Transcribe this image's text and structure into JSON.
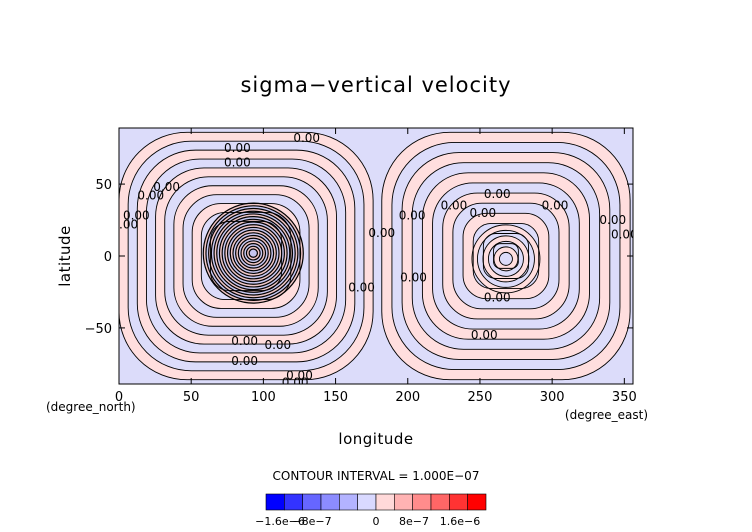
{
  "chart_data": {
    "type": "contour",
    "title": "sigma−vertical velocity",
    "xlabel": "longitude",
    "ylabel": "latitude",
    "x_unit": "(degree_east)",
    "y_unit": "(degree_north)",
    "xlim": [
      0,
      356
    ],
    "ylim": [
      -89,
      89
    ],
    "x_ticks": [
      0,
      50,
      100,
      150,
      200,
      250,
      300,
      350
    ],
    "y_ticks": [
      -50,
      0,
      50
    ],
    "x_tick_labels": [
      "0",
      "50",
      "100",
      "150",
      "200",
      "250",
      "300",
      "350"
    ],
    "y_tick_labels": [
      "−50",
      "0",
      "50"
    ],
    "contour_interval_text": "CONTOUR INTERVAL = 1.000E−07",
    "contour_interval": 1e-07,
    "contour_labels": [
      {
        "text": "0.00",
        "x": 130,
        "y": 82
      },
      {
        "text": "0.00",
        "x": 82,
        "y": 75
      },
      {
        "text": "0.00",
        "x": 82,
        "y": 65
      },
      {
        "text": "0.00",
        "x": 4,
        "y": 22
      },
      {
        "text": "0.00",
        "x": 12,
        "y": 28
      },
      {
        "text": "0.00",
        "x": 22,
        "y": 42
      },
      {
        "text": "0.00",
        "x": 33,
        "y": 48
      },
      {
        "text": "0.00",
        "x": 168,
        "y": -22
      },
      {
        "text": "0.00",
        "x": 87,
        "y": -59
      },
      {
        "text": "0.00",
        "x": 110,
        "y": -62
      },
      {
        "text": "0.00",
        "x": 87,
        "y": -73
      },
      {
        "text": "0.00",
        "x": 125,
        "y": -83
      },
      {
        "text": "0.00",
        "x": 122,
        "y": -88
      },
      {
        "text": "0.00",
        "x": 182,
        "y": 16
      },
      {
        "text": "0.00",
        "x": 203,
        "y": 28
      },
      {
        "text": "0.00",
        "x": 262,
        "y": 43
      },
      {
        "text": "0.00",
        "x": 232,
        "y": 35
      },
      {
        "text": "0.00",
        "x": 252,
        "y": 30
      },
      {
        "text": "0.00",
        "x": 204,
        "y": -15
      },
      {
        "text": "0.00",
        "x": 262,
        "y": -29
      },
      {
        "text": "0.00",
        "x": 253,
        "y": -55
      },
      {
        "text": "0.00",
        "x": 302,
        "y": 35
      },
      {
        "text": "0.00",
        "x": 342,
        "y": 25
      },
      {
        "text": "0.00",
        "x": 350,
        "y": 15
      }
    ],
    "colorbar": {
      "colors": [
        "#0000ff",
        "#3333ff",
        "#6666ff",
        "#8c8cff",
        "#b3b3ff",
        "#d9d9ff",
        "#ffd9d9",
        "#ffb3b3",
        "#ff8c8c",
        "#ff6666",
        "#ff3333",
        "#ff0000"
      ],
      "tick_labels": [
        "−1.6e−6",
        "−8e−7",
        "0",
        "8e−7",
        "1.6e−6"
      ]
    },
    "colors": {
      "positive_fill": "#ffdede",
      "negative_fill": "#dcdcfa",
      "contour_line": "#000000"
    }
  }
}
